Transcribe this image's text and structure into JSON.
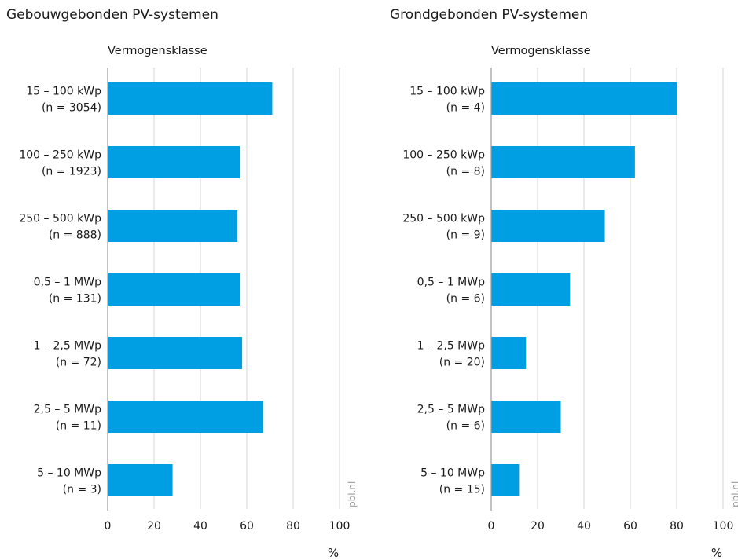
{
  "chart_data": [
    {
      "type": "bar",
      "orientation": "horizontal",
      "title": "Gebouwgebonden PV-systemen",
      "subtitle": "Vermogensklasse",
      "xlabel": "%",
      "xlim": [
        0,
        100
      ],
      "xticks": [
        0,
        20,
        40,
        60,
        80,
        100
      ],
      "grid": true,
      "source": "pbl.nl",
      "color": "#009fe3",
      "categories": [
        [
          "15 – 100 kWp",
          "(n = 3054)"
        ],
        [
          "100 – 250 kWp",
          "(n = 1923)"
        ],
        [
          "250 – 500 kWp",
          "(n = 888)"
        ],
        [
          "0,5 – 1 MWp",
          "(n = 131)"
        ],
        [
          "1 – 2,5 MWp",
          "(n = 72)"
        ],
        [
          "2,5 – 5 MWp",
          "(n = 11)"
        ],
        [
          "5 – 10 MWp",
          "(n = 3)"
        ]
      ],
      "values": [
        71,
        57,
        56,
        57,
        58,
        67,
        28
      ]
    },
    {
      "type": "bar",
      "orientation": "horizontal",
      "title": "Grondgebonden PV-systemen",
      "subtitle": "Vermogensklasse",
      "xlabel": "%",
      "xlim": [
        0,
        100
      ],
      "xticks": [
        0,
        20,
        40,
        60,
        80,
        100
      ],
      "grid": true,
      "source": "pbl.nl",
      "color": "#009fe3",
      "categories": [
        [
          "15 – 100 kWp",
          "(n = 4)"
        ],
        [
          "100 – 250 kWp",
          "(n = 8)"
        ],
        [
          "250 – 500 kWp",
          "(n = 9)"
        ],
        [
          "0,5 – 1 MWp",
          "(n = 6)"
        ],
        [
          "1 – 2,5 MWp",
          "(n = 20)"
        ],
        [
          "2,5 – 5 MWp",
          "(n = 6)"
        ],
        [
          "5 – 10 MWp",
          "(n = 15)"
        ]
      ],
      "values": [
        80,
        62,
        49,
        34,
        15,
        30,
        12
      ]
    }
  ]
}
